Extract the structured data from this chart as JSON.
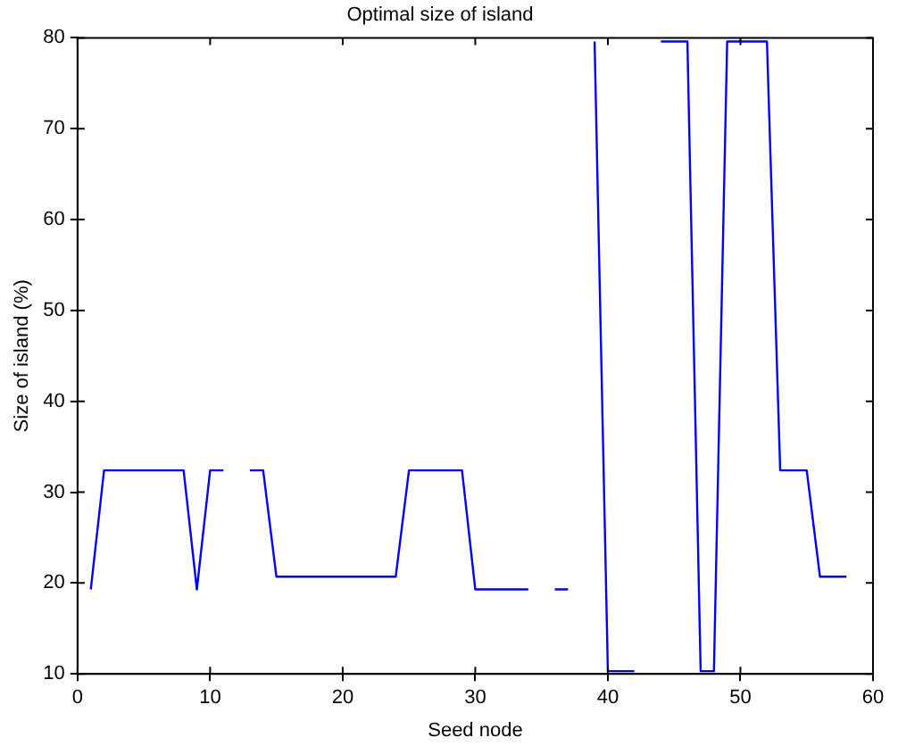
{
  "chart_data": {
    "type": "line",
    "title": "Optimal size of island",
    "xlabel": "Seed node",
    "ylabel": "Size of island (%)",
    "x": [
      1,
      2,
      3,
      4,
      5,
      6,
      7,
      8,
      9,
      10,
      11,
      12,
      13,
      14,
      15,
      16,
      17,
      18,
      19,
      20,
      21,
      22,
      23,
      24,
      25,
      26,
      27,
      28,
      29,
      30,
      31,
      32,
      33,
      34,
      35,
      36,
      37,
      38,
      39,
      40,
      41,
      42,
      43,
      44,
      45,
      46,
      47,
      48,
      49,
      50,
      51,
      52,
      53,
      54,
      55,
      56,
      57,
      58
    ],
    "series": [
      {
        "color": "#0000ff",
        "values": [
          19.3,
          32.4,
          32.4,
          32.4,
          32.4,
          32.4,
          32.4,
          32.4,
          19.3,
          32.4,
          32.4,
          null,
          32.4,
          32.4,
          20.7,
          20.7,
          20.7,
          20.7,
          20.7,
          20.7,
          20.7,
          20.7,
          20.7,
          20.7,
          32.4,
          32.4,
          32.4,
          32.4,
          32.4,
          19.3,
          19.3,
          19.3,
          19.3,
          19.3,
          null,
          19.3,
          19.3,
          null,
          79.6,
          10.3,
          10.3,
          10.3,
          null,
          79.6,
          79.6,
          79.6,
          10.3,
          10.3,
          79.6,
          79.6,
          79.6,
          79.6,
          32.4,
          32.4,
          32.4,
          20.7,
          20.7,
          20.7
        ]
      }
    ],
    "xlim": [
      0,
      60
    ],
    "xticks": [
      0,
      10,
      20,
      30,
      40,
      50,
      60
    ],
    "ylim": [
      10,
      80
    ],
    "yticks": [
      10,
      20,
      30,
      40,
      50,
      60,
      70,
      80
    ],
    "grid": false,
    "legend": false,
    "marker": "none",
    "line_style": "solid"
  }
}
